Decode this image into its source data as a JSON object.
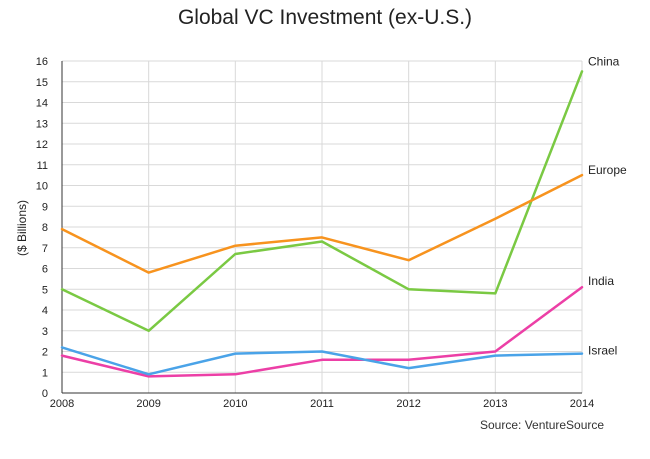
{
  "chart_data": {
    "type": "line",
    "title": "Global VC Investment (ex-U.S.)",
    "xlabel": "",
    "ylabel": "($ Billions)",
    "x": [
      "2008",
      "2009",
      "2010",
      "2011",
      "2012",
      "2013",
      "2014"
    ],
    "ylim": [
      0,
      16
    ],
    "yticks": [
      "0",
      "1",
      "2",
      "3",
      "4",
      "5",
      "6",
      "7",
      "8",
      "9",
      "10",
      "11",
      "12",
      "13",
      "14",
      "15",
      "16"
    ],
    "grid": true,
    "legend": "end-of-line labels",
    "series": [
      {
        "name": "China",
        "color": "#7ac943",
        "values": [
          5.0,
          3.0,
          6.7,
          7.3,
          5.0,
          4.8,
          15.5
        ]
      },
      {
        "name": "Europe",
        "color": "#f7931e",
        "values": [
          7.9,
          5.8,
          7.1,
          7.5,
          6.4,
          8.4,
          10.5
        ]
      },
      {
        "name": "India",
        "color": "#ec3fa6",
        "values": [
          1.8,
          0.8,
          0.9,
          1.6,
          1.6,
          2.0,
          5.1
        ]
      },
      {
        "name": "Israel",
        "color": "#4aa3e8",
        "values": [
          2.2,
          0.9,
          1.9,
          2.0,
          1.2,
          1.8,
          1.9
        ]
      }
    ],
    "source": "Source: VentureSource"
  }
}
